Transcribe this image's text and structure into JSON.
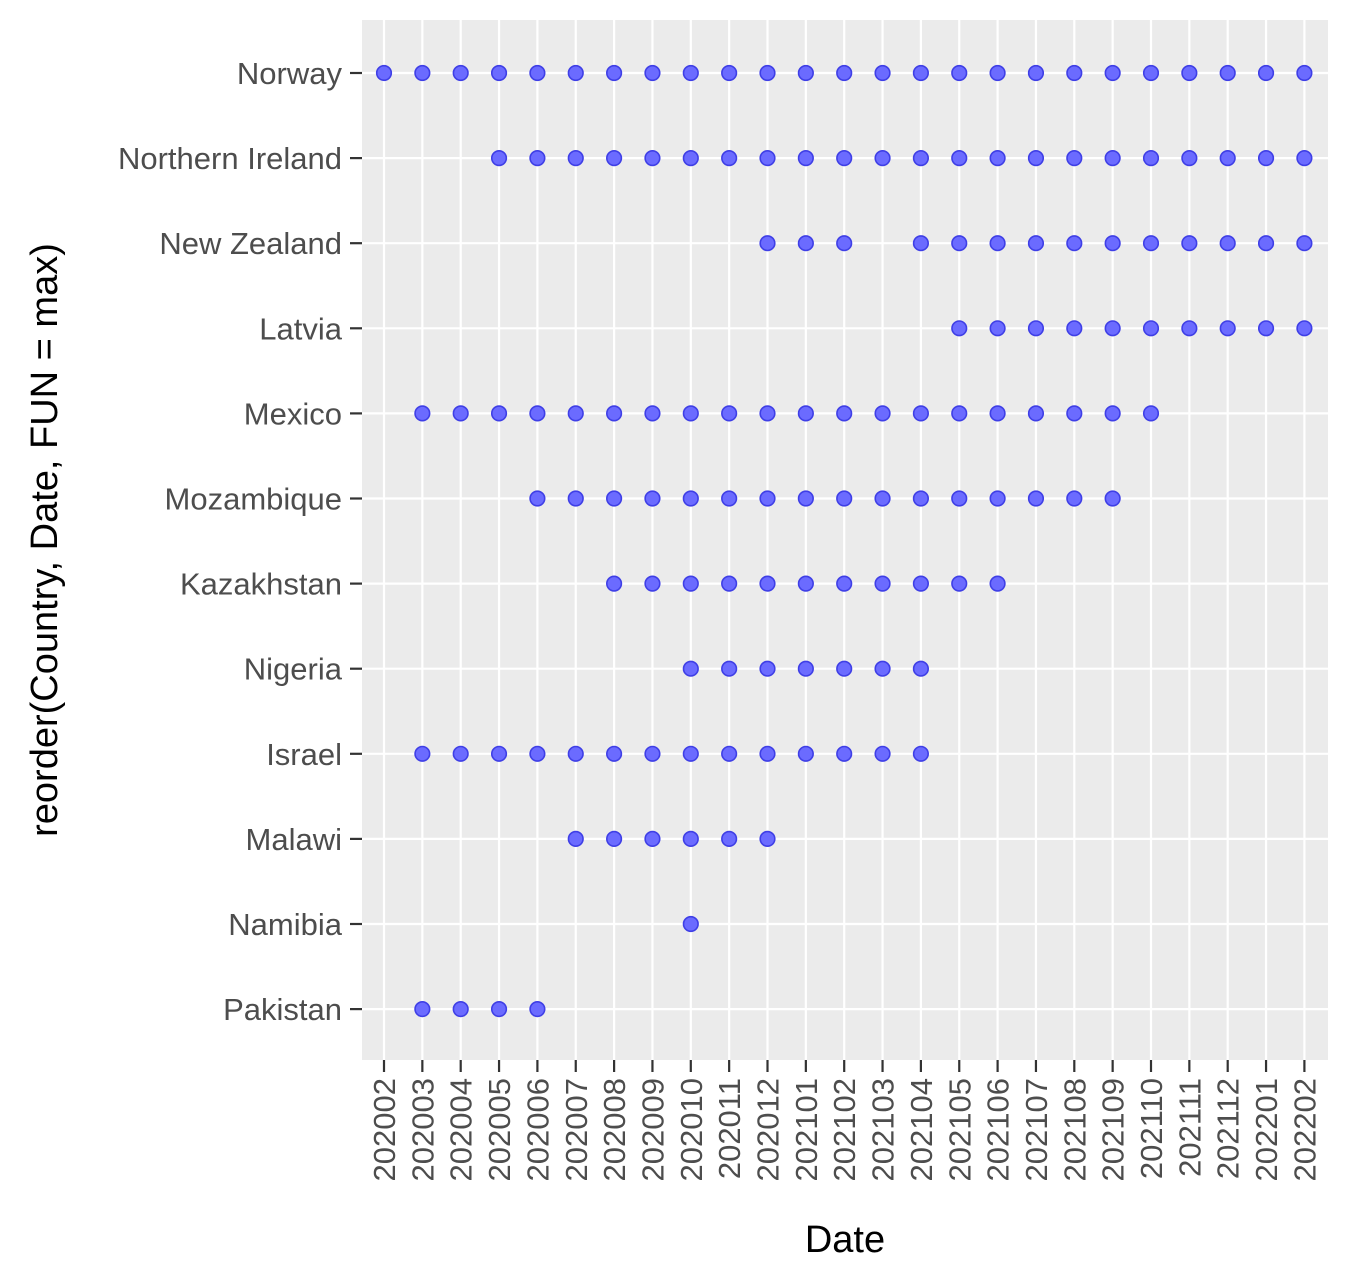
{
  "chart_data": {
    "type": "scatter",
    "xlabel": "Date",
    "ylabel": "reorder(Country, Date, FUN = max)",
    "x_categories": [
      "202002",
      "202003",
      "202004",
      "202005",
      "202006",
      "202007",
      "202008",
      "202009",
      "202010",
      "202011",
      "202012",
      "202101",
      "202102",
      "202103",
      "202104",
      "202105",
      "202106",
      "202107",
      "202108",
      "202109",
      "202110",
      "202111",
      "202112",
      "202201",
      "202202"
    ],
    "y_categories": [
      "Norway",
      "Northern Ireland",
      "New Zealand",
      "Latvia",
      "Mexico",
      "Mozambique",
      "Kazakhstan",
      "Nigeria",
      "Israel",
      "Malawi",
      "Namibia",
      "Pakistan"
    ],
    "grid": true,
    "legend": "none",
    "point_color": "#6b6bff",
    "point_stroke": "#3f3fe6",
    "panel_background": "#ebebeb",
    "series": [
      {
        "country": "Norway",
        "dates": [
          "202002",
          "202003",
          "202004",
          "202005",
          "202006",
          "202007",
          "202008",
          "202009",
          "202010",
          "202011",
          "202012",
          "202101",
          "202102",
          "202103",
          "202104",
          "202105",
          "202106",
          "202107",
          "202108",
          "202109",
          "202110",
          "202111",
          "202112",
          "202201",
          "202202"
        ]
      },
      {
        "country": "Northern Ireland",
        "dates": [
          "202005",
          "202006",
          "202007",
          "202008",
          "202009",
          "202010",
          "202011",
          "202012",
          "202101",
          "202102",
          "202103",
          "202104",
          "202105",
          "202106",
          "202107",
          "202108",
          "202109",
          "202110",
          "202111",
          "202112",
          "202201",
          "202202"
        ]
      },
      {
        "country": "New Zealand",
        "dates": [
          "202012",
          "202101",
          "202102",
          "202104",
          "202105",
          "202106",
          "202107",
          "202108",
          "202109",
          "202110",
          "202111",
          "202112",
          "202201",
          "202202"
        ]
      },
      {
        "country": "Latvia",
        "dates": [
          "202105",
          "202106",
          "202107",
          "202108",
          "202109",
          "202110",
          "202111",
          "202112",
          "202201",
          "202202"
        ]
      },
      {
        "country": "Mexico",
        "dates": [
          "202003",
          "202004",
          "202005",
          "202006",
          "202007",
          "202008",
          "202009",
          "202010",
          "202011",
          "202012",
          "202101",
          "202102",
          "202103",
          "202104",
          "202105",
          "202106",
          "202107",
          "202108",
          "202109",
          "202110"
        ]
      },
      {
        "country": "Mozambique",
        "dates": [
          "202006",
          "202007",
          "202008",
          "202009",
          "202010",
          "202011",
          "202012",
          "202101",
          "202102",
          "202103",
          "202104",
          "202105",
          "202106",
          "202107",
          "202108",
          "202109"
        ]
      },
      {
        "country": "Kazakhstan",
        "dates": [
          "202008",
          "202009",
          "202010",
          "202011",
          "202012",
          "202101",
          "202102",
          "202103",
          "202104",
          "202105",
          "202106"
        ]
      },
      {
        "country": "Nigeria",
        "dates": [
          "202010",
          "202011",
          "202012",
          "202101",
          "202102",
          "202103",
          "202104"
        ]
      },
      {
        "country": "Israel",
        "dates": [
          "202003",
          "202004",
          "202005",
          "202006",
          "202007",
          "202008",
          "202009",
          "202010",
          "202011",
          "202012",
          "202101",
          "202102",
          "202103",
          "202104"
        ]
      },
      {
        "country": "Malawi",
        "dates": [
          "202007",
          "202008",
          "202009",
          "202010",
          "202011",
          "202012"
        ]
      },
      {
        "country": "Namibia",
        "dates": [
          "202010"
        ]
      },
      {
        "country": "Pakistan",
        "dates": [
          "202003",
          "202004",
          "202005",
          "202006"
        ]
      }
    ]
  }
}
